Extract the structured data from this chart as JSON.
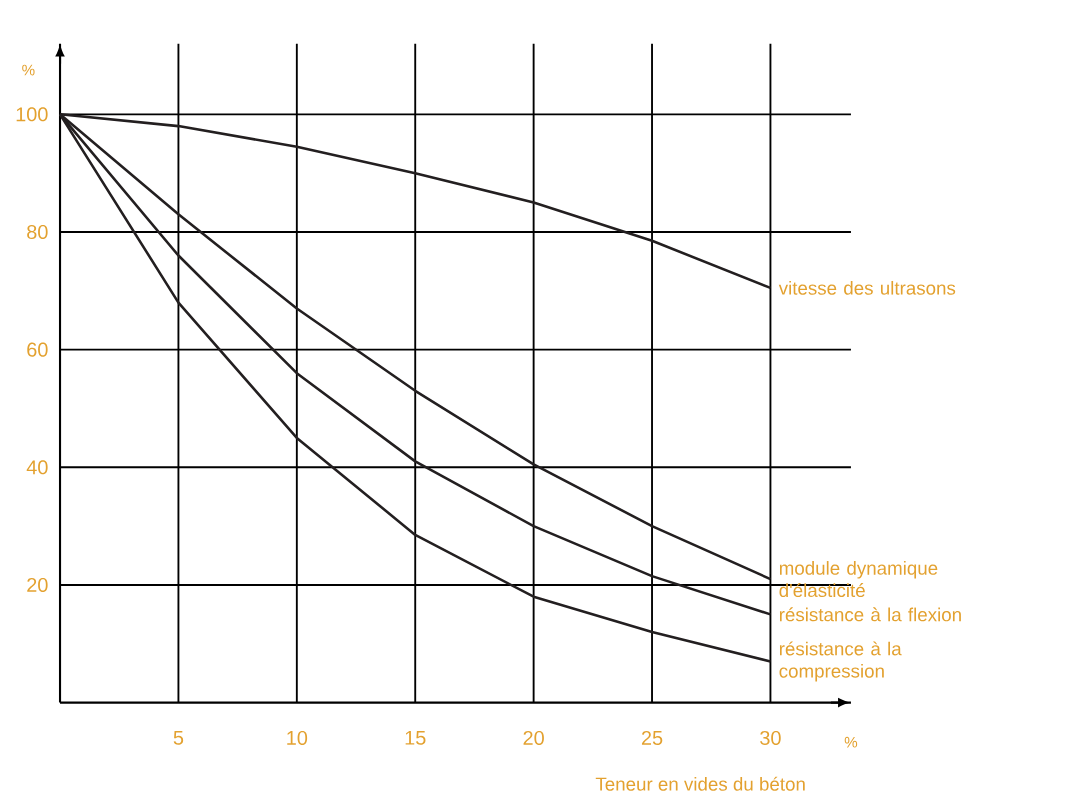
{
  "chart_data": {
    "type": "line",
    "xlabel": "Teneur en vides du béton",
    "ylabel": "%",
    "annotations": [
      "%"
    ],
    "x": [
      0,
      5,
      10,
      15,
      20,
      25,
      30
    ],
    "xlim": [
      0,
      33.4
    ],
    "ylim": [
      0,
      112
    ],
    "xticks": [
      5,
      10,
      15,
      20,
      25,
      30
    ],
    "yticks": [
      20,
      40,
      60,
      80,
      100
    ],
    "grid": true,
    "marker": "none",
    "line_style": "solid",
    "series": [
      {
        "name": "vitesse des ultrasons",
        "color": "#231f20",
        "values": [
          100,
          98,
          94.5,
          90,
          85,
          78.5,
          70.5
        ]
      },
      {
        "name": "module dynamique d'élasticité",
        "color": "#231f20",
        "values": [
          100,
          83,
          67,
          53,
          40.5,
          30,
          21
        ]
      },
      {
        "name": "résistance à la flexion",
        "color": "#231f20",
        "values": [
          100,
          76,
          56,
          41,
          30,
          21.5,
          15
        ]
      },
      {
        "name": "résistance à la compression",
        "color": "#231f20",
        "values": [
          100,
          68,
          45,
          28.5,
          18,
          12,
          7
        ]
      }
    ]
  }
}
